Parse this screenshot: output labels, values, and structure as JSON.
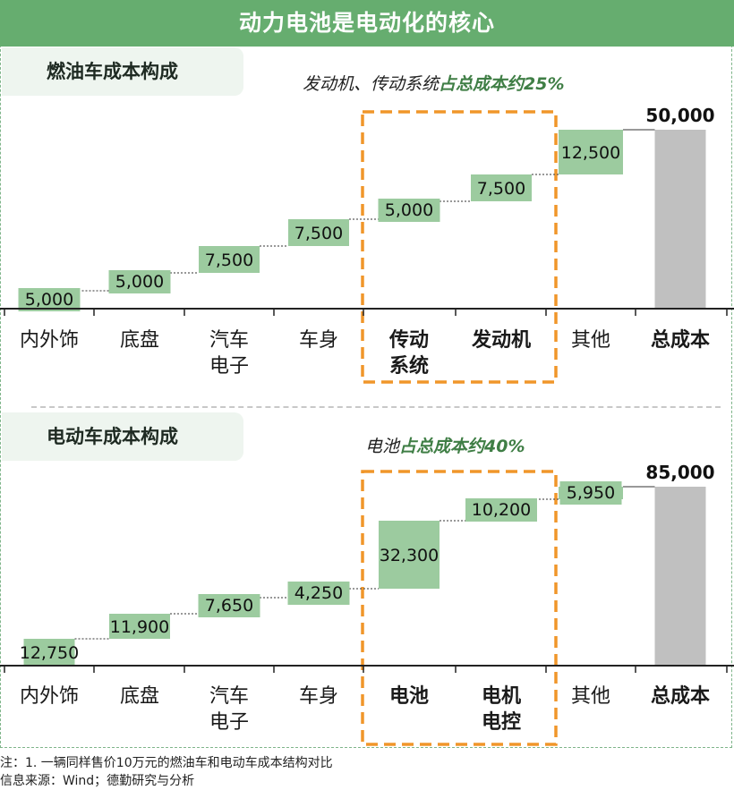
{
  "title": "动力电池是电动化的核心",
  "footer": {
    "note": "注：1. 一辆同样售价10万元的燃油车和电动车成本结构对比",
    "source": "信息来源：Wind；德勤研究与分析"
  },
  "colors": {
    "header": "#66ad6f",
    "bar": "#9ccb9f",
    "total": "#c0c0c0",
    "highlight_box": "#f0962a",
    "accent_text": "#3f7e45"
  },
  "chart_data": [
    {
      "type": "bar",
      "subtype": "waterfall",
      "panel_label": "燃油车成本构成",
      "headline_prefix": "发动机、传动系统",
      "headline_highlight": "占总成本约25%",
      "categories": [
        "内外饰",
        "底盘",
        "汽车电子",
        "车身",
        "传动系统",
        "发动机",
        "其他",
        "总成本"
      ],
      "category_labels": [
        [
          "内外饰"
        ],
        [
          "底盘"
        ],
        [
          "汽车",
          "电子"
        ],
        [
          "车身"
        ],
        [
          "传动",
          "系统"
        ],
        [
          "发动机"
        ],
        [
          "其他"
        ],
        [
          "总成本"
        ]
      ],
      "bold_categories": [
        "传动系统",
        "发动机",
        "总成本"
      ],
      "values": [
        5000,
        5000,
        7500,
        7500,
        5000,
        7500,
        12500,
        50000
      ],
      "value_labels": [
        "5,000",
        "5,000",
        "7,500",
        "7,500",
        "5,000",
        "7,500",
        "12,500",
        "50,000"
      ],
      "total_index": 7,
      "highlight_categories": [
        "传动系统",
        "发动机"
      ],
      "ylim": [
        0,
        50000
      ]
    },
    {
      "type": "bar",
      "subtype": "waterfall",
      "panel_label": "电动车成本构成",
      "headline_prefix": "电池",
      "headline_highlight": "占总成本约40%",
      "categories": [
        "内外饰",
        "底盘",
        "汽车电子",
        "车身",
        "电池",
        "电机电控",
        "其他",
        "总成本"
      ],
      "category_labels": [
        [
          "内外饰"
        ],
        [
          "底盘"
        ],
        [
          "汽车",
          "电子"
        ],
        [
          "车身"
        ],
        [
          "电池"
        ],
        [
          "电机",
          "电控"
        ],
        [
          "其他"
        ],
        [
          "总成本"
        ]
      ],
      "bold_categories": [
        "电池",
        "电机电控",
        "总成本"
      ],
      "values": [
        12750,
        11900,
        7650,
        4250,
        32300,
        10200,
        5950,
        85000
      ],
      "value_labels": [
        "12,750",
        "11,900",
        "7,650",
        "4,250",
        "32,300",
        "10,200",
        "5,950",
        "85,000"
      ],
      "total_index": 7,
      "highlight_categories": [
        "电池",
        "电机电控"
      ],
      "ylim": [
        0,
        85000
      ]
    }
  ]
}
